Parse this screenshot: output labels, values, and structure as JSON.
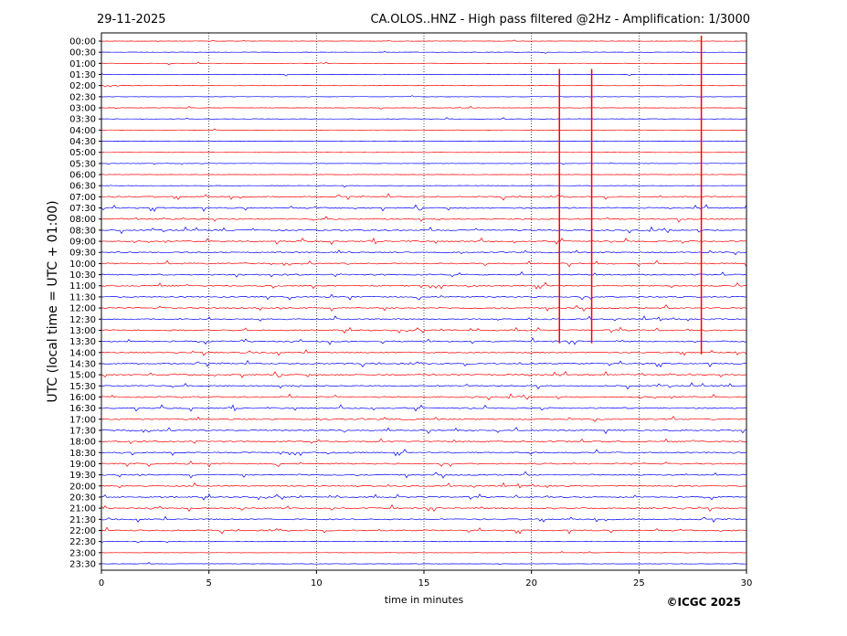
{
  "header": {
    "date": "29-11-2025",
    "title": "CA.OLOS..HNZ - High pass filtered @2Hz - Amplification: 1/3000"
  },
  "footer": {
    "copyright": "©ICGC 2025"
  },
  "chart_data": {
    "type": "line",
    "xlabel": "time in minutes",
    "ylabel": "UTC (local time = UTC + 01:00)",
    "xlim": [
      0,
      30
    ],
    "xticks": [
      "0",
      "5",
      "10",
      "15",
      "20",
      "25",
      "30"
    ],
    "grid_x": true,
    "row_labels": [
      "00:00",
      "00:30",
      "01:00",
      "01:30",
      "02:00",
      "02:30",
      "03:00",
      "03:30",
      "04:00",
      "04:30",
      "05:00",
      "05:30",
      "06:00",
      "06:30",
      "07:00",
      "07:30",
      "08:00",
      "08:30",
      "09:00",
      "09:30",
      "10:00",
      "10:30",
      "11:00",
      "11:30",
      "12:00",
      "12:30",
      "13:00",
      "13:30",
      "14:00",
      "14:30",
      "15:00",
      "15:30",
      "16:00",
      "16:30",
      "17:00",
      "17:30",
      "18:00",
      "18:30",
      "19:00",
      "19:30",
      "20:00",
      "20:30",
      "21:00",
      "21:30",
      "22:00",
      "22:30",
      "23:00",
      "23:30"
    ],
    "colors": [
      "#ff0000",
      "#0000ff"
    ],
    "events": [
      {
        "minute": 21.3,
        "from_row": 3,
        "to_row": 27
      },
      {
        "minute": 22.8,
        "from_row": 3,
        "to_row": 27
      },
      {
        "minute": 27.9,
        "from_row": 0,
        "to_row": 28
      }
    ]
  }
}
